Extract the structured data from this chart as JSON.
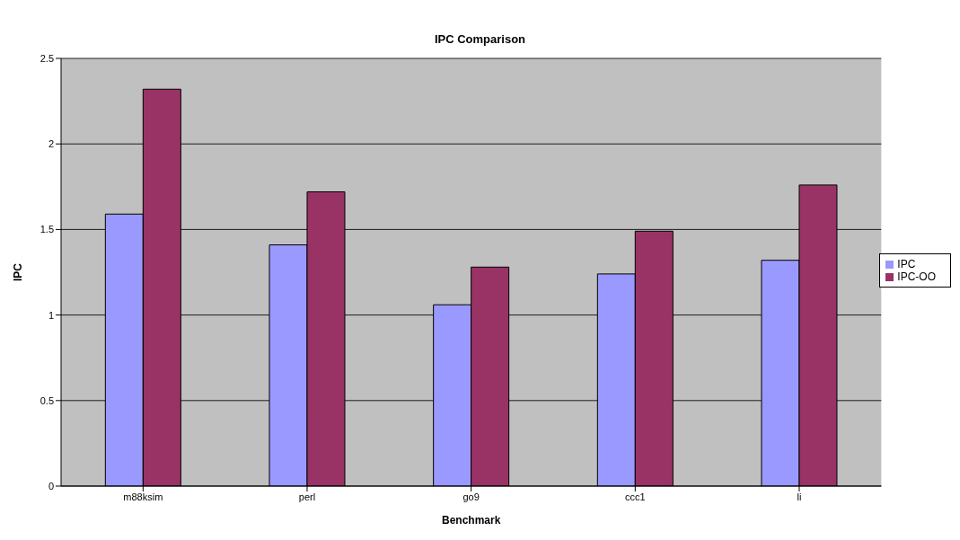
{
  "chart_data": {
    "type": "bar",
    "title": "IPC Comparison",
    "xlabel": "Benchmark",
    "ylabel": "IPC",
    "categories": [
      "m88ksim",
      "perl",
      "go9",
      "ccc1",
      "li"
    ],
    "series": [
      {
        "name": "IPC",
        "color": "#9999ff",
        "values": [
          1.59,
          1.41,
          1.06,
          1.24,
          1.32
        ]
      },
      {
        "name": "IPC-OO",
        "color": "#993366",
        "values": [
          2.32,
          1.72,
          1.28,
          1.49,
          1.76
        ]
      }
    ],
    "ylim": [
      0,
      2.5
    ],
    "yticks": [
      0,
      0.5,
      1,
      1.5,
      2,
      2.5
    ],
    "grid": "y",
    "legend": "right"
  }
}
